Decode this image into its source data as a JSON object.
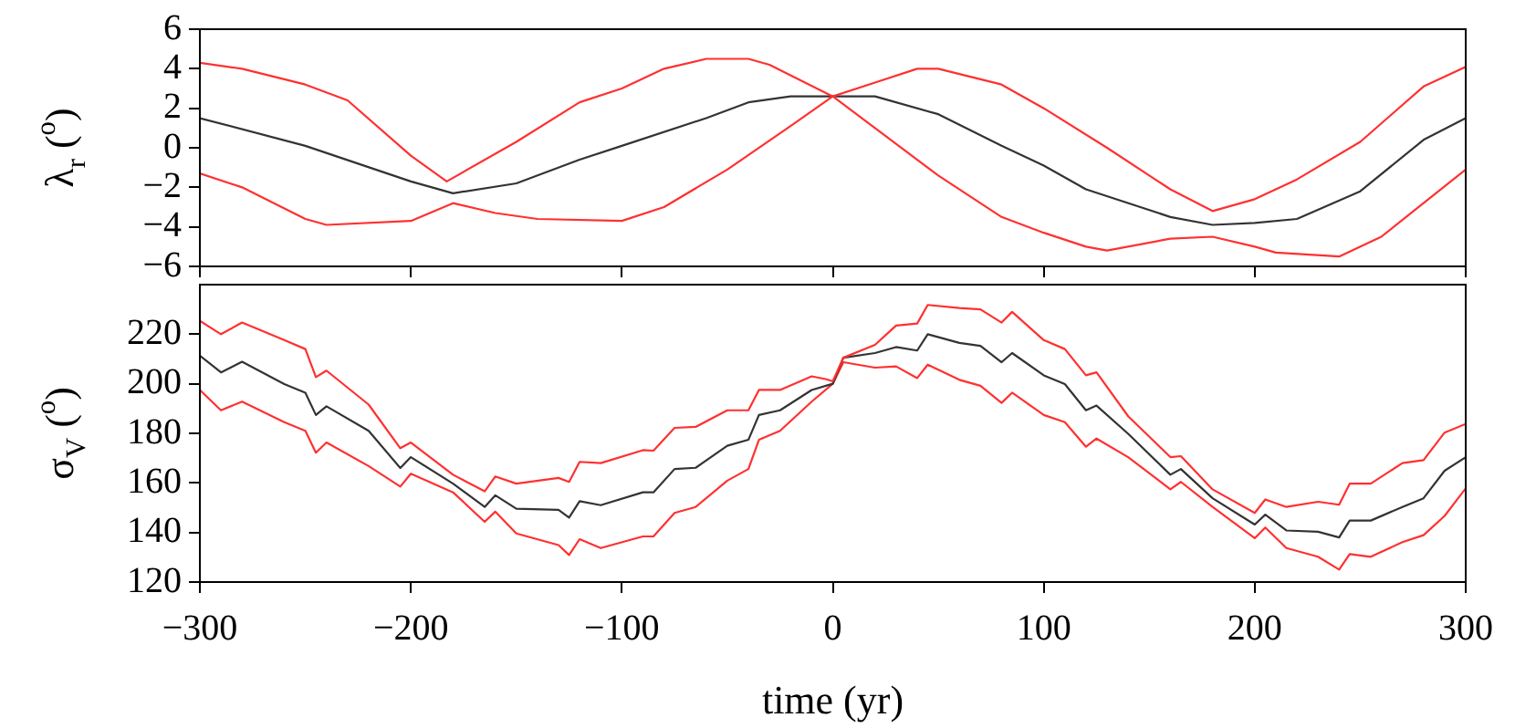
{
  "chart_data": [
    {
      "type": "line",
      "ylabel": "λ$_{r}$ ($^{o}$)",
      "xlim": [
        -300,
        300
      ],
      "xticks": [
        -300,
        -200,
        -100,
        0,
        100,
        200,
        300
      ],
      "ylim": [
        -6,
        6
      ],
      "yticks": [
        -6,
        -4,
        -2,
        0,
        2,
        4,
        6
      ],
      "tick_labels": "y",
      "grid": false,
      "legend": false,
      "marker": "none",
      "series": [
        {
          "color": "#ff3030",
          "x": [
            -300,
            -280,
            -250,
            -230,
            -200,
            -183,
            -150,
            -120,
            -100,
            -80,
            -60,
            -40,
            -30,
            0,
            50,
            80,
            100,
            120,
            130,
            160,
            180,
            200,
            210,
            240,
            260,
            280,
            300
          ],
          "values": [
            4.3,
            4.0,
            3.2,
            2.4,
            -0.4,
            -1.7,
            0.3,
            2.3,
            3.0,
            4.0,
            4.5,
            4.5,
            4.2,
            2.6,
            -1.4,
            -3.5,
            -4.3,
            -5.0,
            -5.2,
            -4.6,
            -4.5,
            -5.0,
            -5.3,
            -5.5,
            -4.5,
            -2.8,
            -1.1
          ]
        },
        {
          "color": "#ff3030",
          "x": [
            -300,
            -280,
            -250,
            -240,
            -200,
            -180,
            -160,
            -140,
            -100,
            -80,
            -50,
            -20,
            0,
            20,
            40,
            50,
            80,
            100,
            130,
            160,
            180,
            200,
            220,
            250,
            280,
            300
          ],
          "values": [
            -1.3,
            -2.0,
            -3.6,
            -3.9,
            -3.7,
            -2.8,
            -3.3,
            -3.6,
            -3.7,
            -3.0,
            -1.1,
            1.1,
            2.6,
            3.3,
            4.0,
            4.0,
            3.2,
            2.0,
            0.0,
            -2.1,
            -3.2,
            -2.6,
            -1.6,
            0.3,
            3.1,
            4.1
          ]
        },
        {
          "color": "#333333",
          "x": [
            -300,
            -250,
            -200,
            -180,
            -150,
            -120,
            -100,
            -60,
            -40,
            -20,
            0,
            20,
            50,
            80,
            100,
            120,
            160,
            180,
            200,
            220,
            250,
            280,
            300
          ],
          "values": [
            1.5,
            0.1,
            -1.7,
            -2.3,
            -1.8,
            -0.6,
            0.1,
            1.5,
            2.3,
            2.6,
            2.6,
            2.6,
            1.7,
            0.1,
            -0.9,
            -2.1,
            -3.5,
            -3.9,
            -3.8,
            -3.6,
            -2.2,
            0.4,
            1.5
          ]
        }
      ]
    },
    {
      "type": "line",
      "xlabel": "time (yr)",
      "ylabel": "σ$_{V}$ ($^{o}$)",
      "xlim": [
        -300,
        300
      ],
      "xticks": [
        -300,
        -200,
        -100,
        0,
        100,
        200,
        300
      ],
      "ylim": [
        120,
        240
      ],
      "yticks": [
        120,
        140,
        160,
        180,
        200,
        220
      ],
      "grid": false,
      "legend": false,
      "marker": "none",
      "series": [
        {
          "color": "#ff3030",
          "x": [
            -300,
            -290,
            -280,
            -260,
            -250,
            -245,
            -240,
            -220,
            -205,
            -200,
            -180,
            -165,
            -160,
            -150,
            -130,
            -125,
            -120,
            -110,
            -90,
            -85,
            -75,
            -65,
            -50,
            -40,
            -35,
            -25,
            -10,
            -3,
            0,
            5,
            20,
            30,
            40,
            45,
            60,
            70,
            80,
            85,
            100,
            110,
            120,
            125,
            140,
            160,
            165,
            180,
            200,
            205,
            215,
            230,
            240,
            245,
            255,
            270,
            280,
            290,
            300
          ],
          "values": [
            225.4,
            220,
            224.7,
            217.6,
            214,
            202.7,
            205.3,
            191.6,
            174,
            176.3,
            163.3,
            156.6,
            162.6,
            159.7,
            162,
            160.4,
            168.5,
            168,
            173.2,
            173,
            182.2,
            182.6,
            189.3,
            189.3,
            197.5,
            197.5,
            203,
            201.8,
            201,
            210.5,
            215.7,
            223.5,
            224.3,
            231.8,
            230.6,
            230,
            224.7,
            229,
            217.6,
            214,
            203.4,
            204.6,
            186.9,
            170.4,
            170.8,
            157.4,
            147.9,
            153.3,
            150.3,
            152.4,
            151.2,
            159.7,
            159.7,
            168,
            169.2,
            180.3,
            183.8
          ]
        },
        {
          "color": "#333333",
          "x": [
            -300,
            -290,
            -280,
            -260,
            -250,
            -245,
            -240,
            -220,
            -205,
            -200,
            -180,
            -165,
            -160,
            -150,
            -130,
            -125,
            -120,
            -110,
            -90,
            -85,
            -75,
            -65,
            -50,
            -40,
            -35,
            -25,
            -10,
            0,
            5,
            20,
            30,
            40,
            45,
            60,
            70,
            80,
            85,
            100,
            110,
            120,
            125,
            140,
            160,
            165,
            180,
            200,
            205,
            215,
            230,
            240,
            245,
            255,
            270,
            280,
            290,
            300
          ],
          "values": [
            211.3,
            204.6,
            208.9,
            199.9,
            196.4,
            187.4,
            190.9,
            181,
            166,
            170.4,
            159.7,
            150.3,
            155,
            149.6,
            149.1,
            146,
            152.6,
            151,
            156.2,
            156.2,
            165.6,
            166.1,
            175,
            177.4,
            187.4,
            189.3,
            197.5,
            200,
            210.5,
            212.4,
            214.8,
            213.4,
            220,
            216.5,
            215.3,
            208.7,
            212.4,
            203.4,
            199.9,
            189.3,
            191.2,
            179.8,
            163.3,
            165.6,
            153.8,
            143.2,
            147.2,
            140.8,
            140.3,
            138,
            144.8,
            144.8,
            150.3,
            153.8,
            164.9,
            170.4
          ]
        },
        {
          "color": "#ff3030",
          "x": [
            -300,
            -290,
            -280,
            -260,
            -250,
            -245,
            -240,
            -220,
            -205,
            -200,
            -180,
            -165,
            -160,
            -150,
            -130,
            -125,
            -120,
            -110,
            -90,
            -85,
            -75,
            -65,
            -50,
            -40,
            -35,
            -25,
            -10,
            0,
            5,
            20,
            30,
            40,
            45,
            60,
            70,
            80,
            85,
            100,
            110,
            120,
            125,
            140,
            160,
            165,
            180,
            200,
            205,
            215,
            230,
            240,
            245,
            255,
            270,
            280,
            290,
            300
          ],
          "values": [
            197.5,
            189.3,
            192.8,
            184.5,
            181,
            172.2,
            176.3,
            166.8,
            158.5,
            163.7,
            156.2,
            144.3,
            148.4,
            139.6,
            134.9,
            130.9,
            137.3,
            133.7,
            138.4,
            138.4,
            147.9,
            150.3,
            160.9,
            165.6,
            177.4,
            181,
            192.8,
            200,
            208.7,
            206.5,
            207,
            202.3,
            207.7,
            201.6,
            199.2,
            192.3,
            196.4,
            187.4,
            184.5,
            174.6,
            177.9,
            170.4,
            157.4,
            160.4,
            150.3,
            137.7,
            142,
            133.7,
            130.2,
            125,
            131.3,
            130.2,
            136.1,
            138.9,
            146.7,
            157.8
          ]
        }
      ]
    }
  ]
}
